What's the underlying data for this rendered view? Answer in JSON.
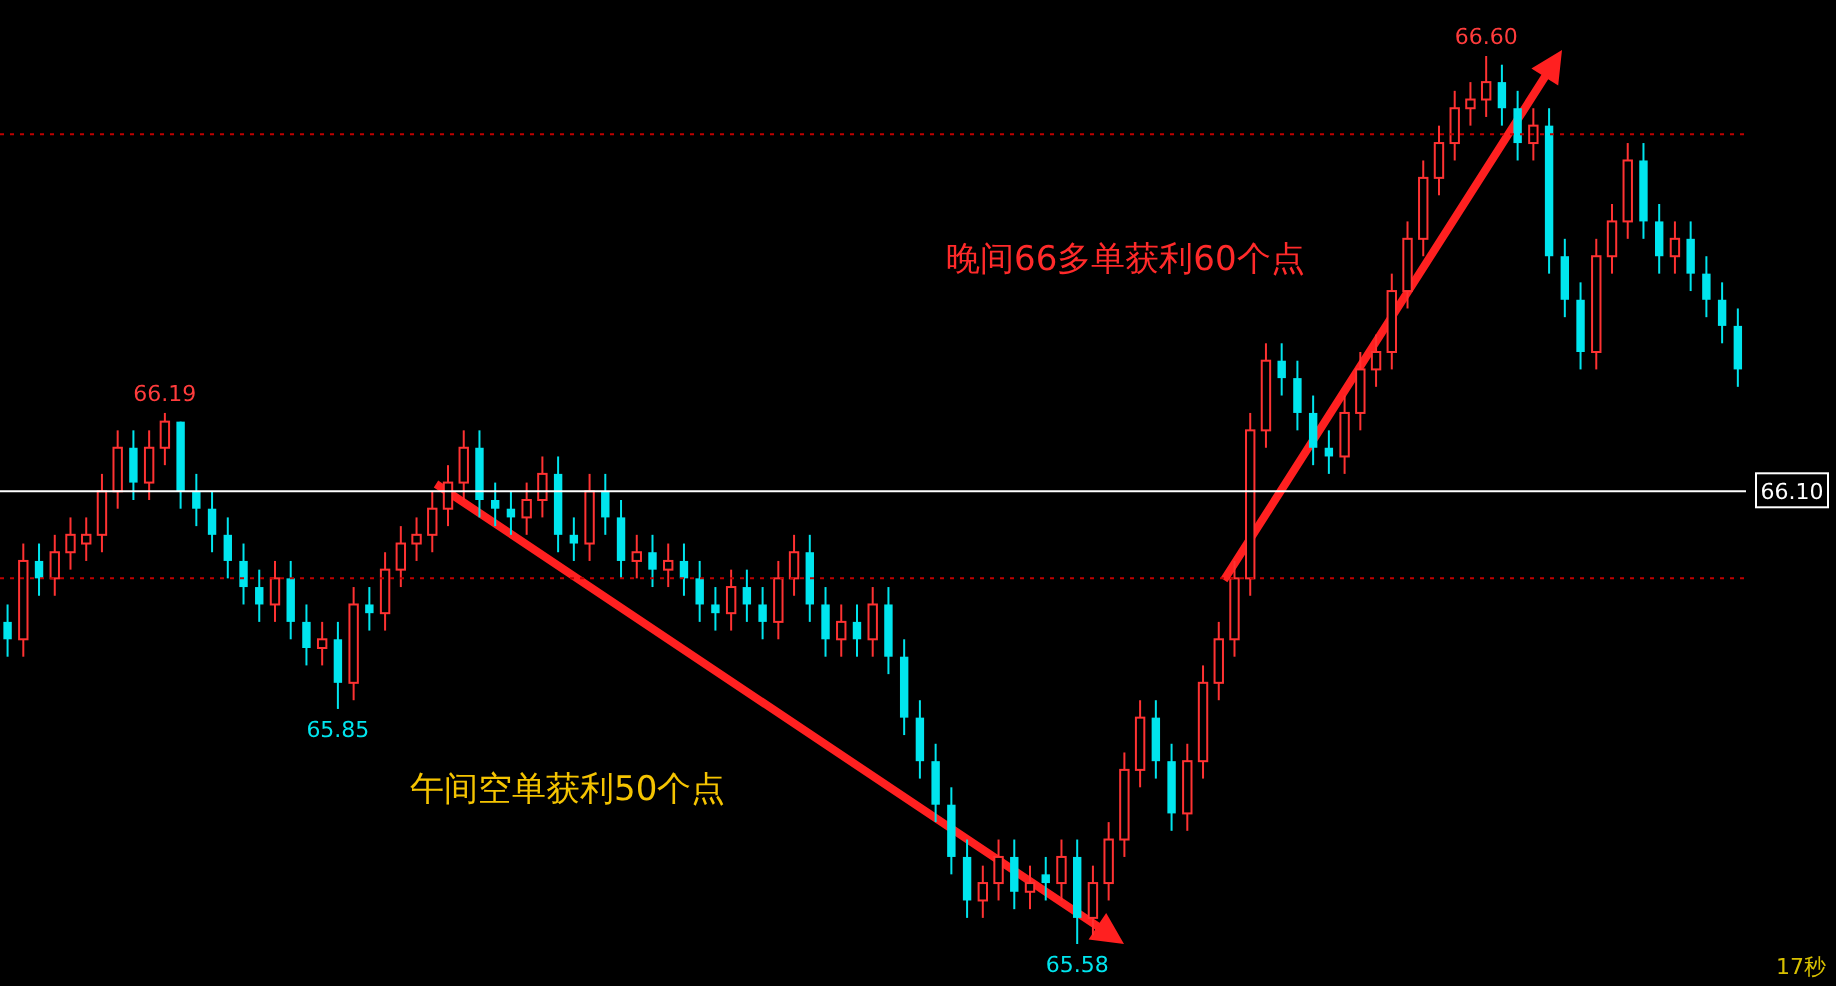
{
  "chart_data": {
    "type": "candlestick",
    "categories": [
      null,
      null,
      null,
      null,
      null,
      null,
      null,
      null,
      null,
      null,
      null,
      null,
      null,
      null,
      null,
      null,
      null,
      null,
      null,
      null,
      null,
      null,
      null,
      null,
      null,
      null,
      null,
      null,
      null,
      null,
      null,
      null,
      null,
      null,
      null,
      null,
      null,
      null,
      null,
      null,
      null,
      null,
      null,
      null,
      null,
      null,
      null,
      null,
      null,
      null,
      null,
      null,
      null,
      null,
      null,
      null,
      null,
      null,
      null,
      null,
      null,
      null,
      null,
      null,
      null,
      null,
      null,
      null,
      null,
      null,
      null,
      null,
      null,
      null,
      null,
      null,
      null,
      null,
      null,
      null,
      null,
      null,
      null,
      null,
      null,
      null,
      null,
      null,
      null,
      null,
      null,
      null,
      null,
      null,
      null,
      null,
      null,
      null,
      null,
      null,
      null,
      null,
      null,
      null,
      null,
      null,
      null,
      null,
      null,
      null,
      null
    ],
    "ohlc": [
      [
        65.95,
        65.97,
        65.91,
        65.93
      ],
      [
        65.93,
        66.04,
        65.91,
        66.02
      ],
      [
        66.02,
        66.04,
        65.98,
        66.0
      ],
      [
        66.0,
        66.05,
        65.98,
        66.03
      ],
      [
        66.03,
        66.07,
        66.01,
        66.05
      ],
      [
        66.04,
        66.07,
        66.02,
        66.05
      ],
      [
        66.05,
        66.12,
        66.03,
        66.1
      ],
      [
        66.1,
        66.17,
        66.08,
        66.15
      ],
      [
        66.15,
        66.17,
        66.09,
        66.11
      ],
      [
        66.11,
        66.17,
        66.09,
        66.15
      ],
      [
        66.15,
        66.19,
        66.13,
        66.18
      ],
      [
        66.18,
        66.18,
        66.08,
        66.1
      ],
      [
        66.1,
        66.12,
        66.06,
        66.08
      ],
      [
        66.08,
        66.1,
        66.03,
        66.05
      ],
      [
        66.05,
        66.07,
        66.0,
        66.02
      ],
      [
        66.02,
        66.04,
        65.97,
        65.99
      ],
      [
        65.99,
        66.01,
        65.95,
        65.97
      ],
      [
        65.97,
        66.02,
        65.95,
        66.0
      ],
      [
        66.0,
        66.02,
        65.93,
        65.95
      ],
      [
        65.95,
        65.97,
        65.9,
        65.92
      ],
      [
        65.92,
        65.95,
        65.9,
        65.93
      ],
      [
        65.93,
        65.95,
        65.85,
        65.88
      ],
      [
        65.88,
        65.99,
        65.86,
        65.97
      ],
      [
        65.97,
        65.99,
        65.94,
        65.96
      ],
      [
        65.96,
        66.03,
        65.94,
        66.01
      ],
      [
        66.01,
        66.06,
        65.99,
        66.04
      ],
      [
        66.04,
        66.07,
        66.02,
        66.05
      ],
      [
        66.05,
        66.1,
        66.03,
        66.08
      ],
      [
        66.08,
        66.13,
        66.06,
        66.11
      ],
      [
        66.11,
        66.17,
        66.09,
        66.15
      ],
      [
        66.15,
        66.17,
        66.07,
        66.09
      ],
      [
        66.09,
        66.11,
        66.06,
        66.08
      ],
      [
        66.08,
        66.1,
        66.05,
        66.07
      ],
      [
        66.07,
        66.11,
        66.05,
        66.09
      ],
      [
        66.09,
        66.14,
        66.07,
        66.12
      ],
      [
        66.12,
        66.14,
        66.03,
        66.05
      ],
      [
        66.05,
        66.07,
        66.02,
        66.04
      ],
      [
        66.04,
        66.12,
        66.02,
        66.1
      ],
      [
        66.1,
        66.12,
        66.05,
        66.07
      ],
      [
        66.07,
        66.09,
        66.0,
        66.02
      ],
      [
        66.02,
        66.05,
        66.0,
        66.03
      ],
      [
        66.03,
        66.05,
        65.99,
        66.01
      ],
      [
        66.01,
        66.04,
        65.99,
        66.02
      ],
      [
        66.02,
        66.04,
        65.98,
        66.0
      ],
      [
        66.0,
        66.02,
        65.95,
        65.97
      ],
      [
        65.97,
        65.99,
        65.94,
        65.96
      ],
      [
        65.96,
        66.01,
        65.94,
        65.99
      ],
      [
        65.99,
        66.01,
        65.95,
        65.97
      ],
      [
        65.97,
        65.99,
        65.93,
        65.95
      ],
      [
        65.95,
        66.02,
        65.93,
        66.0
      ],
      [
        66.0,
        66.05,
        65.98,
        66.03
      ],
      [
        66.03,
        66.05,
        65.95,
        65.97
      ],
      [
        65.97,
        65.99,
        65.91,
        65.93
      ],
      [
        65.93,
        65.97,
        65.91,
        65.95
      ],
      [
        65.95,
        65.97,
        65.91,
        65.93
      ],
      [
        65.93,
        65.99,
        65.91,
        65.97
      ],
      [
        65.97,
        65.99,
        65.89,
        65.91
      ],
      [
        65.91,
        65.93,
        65.82,
        65.84
      ],
      [
        65.84,
        65.86,
        65.77,
        65.79
      ],
      [
        65.79,
        65.81,
        65.72,
        65.74
      ],
      [
        65.74,
        65.76,
        65.66,
        65.68
      ],
      [
        65.68,
        65.7,
        65.61,
        65.63
      ],
      [
        65.63,
        65.67,
        65.61,
        65.65
      ],
      [
        65.65,
        65.7,
        65.63,
        65.68
      ],
      [
        65.68,
        65.7,
        65.62,
        65.64
      ],
      [
        65.64,
        65.67,
        65.62,
        65.65
      ],
      [
        65.66,
        65.68,
        65.63,
        65.65
      ],
      [
        65.65,
        65.7,
        65.63,
        65.68
      ],
      [
        65.68,
        65.7,
        65.58,
        65.61
      ],
      [
        65.61,
        65.67,
        65.59,
        65.65
      ],
      [
        65.65,
        65.72,
        65.63,
        65.7
      ],
      [
        65.7,
        65.8,
        65.68,
        65.78
      ],
      [
        65.78,
        65.86,
        65.76,
        65.84
      ],
      [
        65.84,
        65.86,
        65.77,
        65.79
      ],
      [
        65.79,
        65.81,
        65.71,
        65.73
      ],
      [
        65.73,
        65.81,
        65.71,
        65.79
      ],
      [
        65.79,
        65.9,
        65.77,
        65.88
      ],
      [
        65.88,
        65.95,
        65.86,
        65.93
      ],
      [
        65.93,
        66.02,
        65.91,
        66.0
      ],
      [
        66.0,
        66.19,
        65.98,
        66.17
      ],
      [
        66.17,
        66.27,
        66.15,
        66.25
      ],
      [
        66.25,
        66.27,
        66.21,
        66.23
      ],
      [
        66.23,
        66.25,
        66.17,
        66.19
      ],
      [
        66.19,
        66.21,
        66.13,
        66.15
      ],
      [
        66.15,
        66.17,
        66.12,
        66.14
      ],
      [
        66.14,
        66.21,
        66.12,
        66.19
      ],
      [
        66.19,
        66.26,
        66.17,
        66.24
      ],
      [
        66.24,
        66.28,
        66.22,
        66.26
      ],
      [
        66.26,
        66.35,
        66.24,
        66.33
      ],
      [
        66.33,
        66.41,
        66.31,
        66.39
      ],
      [
        66.39,
        66.48,
        66.37,
        66.46
      ],
      [
        66.46,
        66.52,
        66.44,
        66.5
      ],
      [
        66.5,
        66.56,
        66.48,
        66.54
      ],
      [
        66.54,
        66.57,
        66.52,
        66.55
      ],
      [
        66.55,
        66.6,
        66.53,
        66.57
      ],
      [
        66.57,
        66.59,
        66.52,
        66.54
      ],
      [
        66.54,
        66.56,
        66.48,
        66.5
      ],
      [
        66.5,
        66.54,
        66.48,
        66.52
      ],
      [
        66.52,
        66.54,
        66.35,
        66.37
      ],
      [
        66.37,
        66.39,
        66.3,
        66.32
      ],
      [
        66.32,
        66.34,
        66.24,
        66.26
      ],
      [
        66.26,
        66.39,
        66.24,
        66.37
      ],
      [
        66.37,
        66.43,
        66.35,
        66.41
      ],
      [
        66.41,
        66.5,
        66.39,
        66.48
      ],
      [
        66.48,
        66.5,
        66.39,
        66.41
      ],
      [
        66.41,
        66.43,
        66.35,
        66.37
      ],
      [
        66.37,
        66.41,
        66.35,
        66.39
      ],
      [
        66.39,
        66.41,
        66.33,
        66.35
      ],
      [
        66.35,
        66.37,
        66.3,
        66.32
      ],
      [
        66.32,
        66.34,
        66.27,
        66.29
      ],
      [
        66.29,
        66.31,
        66.22,
        66.24
      ]
    ],
    "ref_lines": [
      {
        "axis": "y",
        "value": 66.1,
        "label": "66.10",
        "color": "#ffffff",
        "line_style": "solid"
      },
      {
        "axis": "y",
        "value": 66.51,
        "color": "#c00000",
        "line_style": "dotted"
      },
      {
        "axis": "y",
        "value": 66.0,
        "color": "#c00000",
        "line_style": "dotted"
      }
    ],
    "annotations": [
      "晚间66多单获利60个点",
      "午间空单获利50个点",
      "17秒",
      {
        "text": "66.19",
        "y": 66.19
      },
      {
        "text": "65.85",
        "y": 65.85
      },
      {
        "text": "65.58",
        "y": 65.58
      },
      {
        "text": "66.60",
        "y": 66.6
      }
    ]
  }
}
